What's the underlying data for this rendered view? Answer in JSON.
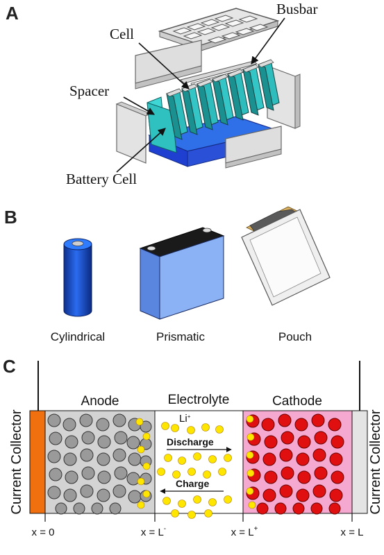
{
  "panels": {
    "a": {
      "letter": "A",
      "labels": {
        "busbar": "Busbar",
        "cell": "Cell",
        "spacer": "Spacer",
        "battery_cell": "Battery Cell"
      }
    },
    "b": {
      "letter": "B",
      "types": [
        "Cylindrical",
        "Prismatic",
        "Pouch"
      ]
    },
    "c": {
      "letter": "C",
      "regions": {
        "anode": "Anode",
        "electrolyte": "Electrolyte",
        "cathode": "Cathode"
      },
      "current_collector": "Current Collector",
      "ion": "Li",
      "ion_charge": "+",
      "discharge": "Discharge",
      "charge": "Charge",
      "positions": {
        "x0": "x = 0",
        "xLminus_base": "x = L",
        "xLminus_sup": "-",
        "xLplus_base": "x = L",
        "xLplus_sup": "+",
        "xL": "x = L"
      }
    }
  },
  "colors": {
    "teal": "#2fc0c0",
    "blue_tray": "#1f3fd0",
    "cylinder_blue": "#1f57d8",
    "prismatic_blue": "#7aa6f0",
    "anode_fill": "#d3d3d3",
    "cathode_fill": "#f6a9d0",
    "particle_red": "#e01010",
    "particle_gray": "#9a9a9a",
    "li_yellow": "#ffe600",
    "collector_orange": "#f07010"
  }
}
